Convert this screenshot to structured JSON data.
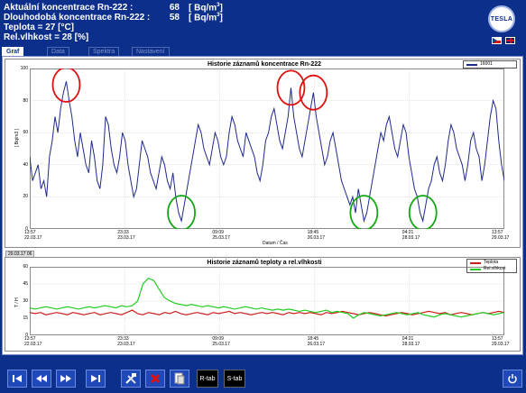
{
  "header": {
    "rows": [
      {
        "label": "Aktuální koncentrace Rn-222 :",
        "value": "68",
        "unit": "[ Bq/m",
        "unit_sup": "3",
        "unit_end": "]"
      },
      {
        "label": "Dlouhodobá koncentrace Rn-222 :",
        "value": "58",
        "unit": "[ Bq/m",
        "unit_sup": "3",
        "unit_end": "]"
      },
      {
        "label": "Teplota = 27  [°C]",
        "value": "",
        "unit": "",
        "unit_sup": "",
        "unit_end": ""
      },
      {
        "label": "Rel.vlhkost = 28  [%]",
        "value": "",
        "unit": "",
        "unit_sup": "",
        "unit_end": ""
      }
    ],
    "logo_text": "TESLA",
    "languages": [
      "cz",
      "uk"
    ]
  },
  "tabs": [
    {
      "label": "Graf",
      "active": true
    },
    {
      "label": "Data",
      "active": false
    },
    {
      "label": "Spektra",
      "active": false
    },
    {
      "label": "Nastavení",
      "active": false
    }
  ],
  "toolbar": {
    "buttons": [
      "first-icon",
      "rewind-icon",
      "fast-forward-icon",
      "last-icon",
      "tools-icon",
      "delete-icon",
      "export-icon"
    ],
    "r_tab": "R-tab",
    "s_tab": "S-tab",
    "power": "power-icon"
  },
  "chart_data": [
    {
      "type": "line",
      "title": "Historie záznamů koncentrace Rn-222",
      "ylabel": "[ Bq/m3 ]",
      "xlabel": "Datum / Čas",
      "ylim": [
        0,
        100
      ],
      "yticks": [
        0,
        20,
        40,
        60,
        80,
        100
      ],
      "xticks": [
        {
          "time": "13:57",
          "date": "22.03.17"
        },
        {
          "time": "23:33",
          "date": "23.03.17"
        },
        {
          "time": "09:09",
          "date": "25.03.17"
        },
        {
          "time": "18:45",
          "date": "26.03.17"
        },
        {
          "time": "04:21",
          "date": "28.03.17"
        },
        {
          "time": "13:57",
          "date": "29.03.17"
        }
      ],
      "legend": [
        "16001"
      ],
      "legend_position": "top-right",
      "series": [
        {
          "name": "16001",
          "color": "#1f2a8a",
          "values": [
            45,
            30,
            35,
            40,
            25,
            30,
            20,
            45,
            55,
            70,
            60,
            75,
            85,
            92,
            80,
            70,
            55,
            45,
            60,
            50,
            40,
            35,
            55,
            45,
            30,
            25,
            40,
            70,
            65,
            50,
            40,
            35,
            45,
            60,
            55,
            40,
            30,
            20,
            25,
            40,
            55,
            50,
            45,
            35,
            30,
            25,
            35,
            45,
            40,
            30,
            25,
            35,
            20,
            10,
            5,
            15,
            25,
            35,
            45,
            55,
            65,
            60,
            50,
            45,
            40,
            50,
            60,
            55,
            45,
            40,
            45,
            60,
            70,
            65,
            55,
            50,
            45,
            60,
            55,
            50,
            45,
            35,
            30,
            40,
            55,
            60,
            70,
            75,
            65,
            55,
            50,
            60,
            70,
            88,
            70,
            60,
            50,
            45,
            55,
            65,
            75,
            85,
            70,
            60,
            50,
            40,
            45,
            55,
            60,
            50,
            40,
            30,
            25,
            20,
            15,
            20,
            10,
            25,
            15,
            5,
            10,
            20,
            30,
            40,
            50,
            60,
            55,
            65,
            70,
            60,
            50,
            45,
            55,
            65,
            60,
            45,
            35,
            25,
            20,
            10,
            5,
            15,
            25,
            30,
            40,
            45,
            35,
            30,
            40,
            55,
            65,
            60,
            50,
            45,
            40,
            30,
            40,
            55,
            60,
            50,
            45,
            30,
            40,
            55,
            70,
            80,
            75,
            55,
            40,
            30
          ]
        }
      ],
      "annotations": [
        "red-circle-peak",
        "red-circle-peak",
        "red-circle-peak",
        "green-circle-trough",
        "green-circle-trough",
        "green-circle-trough"
      ],
      "timestamp": "29.03.17 06"
    },
    {
      "type": "line",
      "title": "Historie záznamů teploty a rel.vlhkosti",
      "ylabel": "T / H",
      "ylim": [
        0,
        60
      ],
      "yticks": [
        0,
        15,
        30,
        45,
        60
      ],
      "xticks": [
        {
          "time": "13:57",
          "date": "22.03.17"
        },
        {
          "time": "23:33",
          "date": "23.03.17"
        },
        {
          "time": "09:09",
          "date": "25.03.17"
        },
        {
          "time": "18:45",
          "date": "26.03.17"
        },
        {
          "time": "04:21",
          "date": "28.03.17"
        },
        {
          "time": "13:57",
          "date": "29.03.17"
        }
      ],
      "legend": [
        "Teplota",
        "Rel.vlhkost"
      ],
      "legend_position": "top-right",
      "series": [
        {
          "name": "Teplota",
          "color": "#cc1f1f",
          "values": [
            20,
            19,
            20,
            18,
            19,
            20,
            19,
            18,
            20,
            19,
            18,
            19,
            20,
            18,
            19,
            20,
            19,
            18,
            20,
            22,
            19,
            18,
            20,
            19,
            18,
            20,
            19,
            21,
            19,
            18,
            19,
            20,
            19,
            18,
            20,
            19,
            20,
            21,
            19,
            20,
            19,
            18,
            19,
            20,
            19,
            20,
            19,
            18,
            20,
            19,
            20,
            19,
            20,
            19,
            18,
            20,
            19,
            20,
            21,
            20,
            19,
            18,
            19,
            20,
            19,
            18,
            17,
            18,
            19,
            20,
            19,
            18,
            19,
            20,
            21,
            20,
            19,
            20,
            18,
            19,
            20,
            19,
            18,
            19,
            20,
            19,
            20,
            21,
            20
          ]
        },
        {
          "name": "Rel.vlhkost",
          "color": "#22cc22",
          "values": [
            24,
            23,
            24,
            25,
            24,
            23,
            24,
            25,
            24,
            23,
            24,
            25,
            24,
            25,
            26,
            25,
            24,
            26,
            25,
            26,
            30,
            45,
            50,
            48,
            40,
            33,
            30,
            28,
            27,
            26,
            27,
            26,
            25,
            26,
            25,
            24,
            25,
            24,
            23,
            24,
            25,
            24,
            23,
            24,
            23,
            22,
            23,
            22,
            23,
            22,
            21,
            22,
            21,
            20,
            21,
            22,
            20,
            21,
            20,
            19,
            15,
            18,
            20,
            19,
            18,
            17,
            18,
            19,
            20,
            19,
            18,
            19,
            20,
            18,
            17,
            16,
            18,
            19,
            18,
            17,
            16,
            17,
            18,
            19,
            20,
            19,
            18,
            19,
            20
          ]
        }
      ]
    }
  ]
}
